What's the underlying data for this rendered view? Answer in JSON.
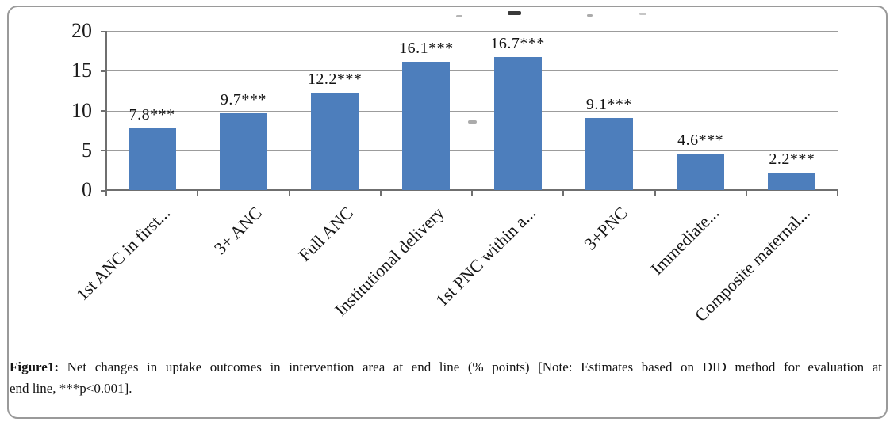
{
  "caption": {
    "label": "Figure1:",
    "line1_rest": " Net changes in uptake outcomes in intervention area at end line (% points) [Note: Estimates based on DID method for evaluation at",
    "line2": "end line, ***p<0.001]."
  },
  "chart_data": {
    "type": "bar",
    "title": "",
    "xlabel": "",
    "ylabel": "",
    "categories": [
      "1st ANC in first...",
      "3+ ANC",
      "Full ANC",
      "Institutional delivery",
      "1st PNC within a...",
      "3+PNC",
      "Immediate...",
      "Composite maternal..."
    ],
    "values": [
      7.8,
      9.7,
      12.2,
      16.1,
      16.7,
      9.1,
      4.6,
      2.2
    ],
    "point_labels": [
      "7.8***",
      "9.7***",
      "12.2***",
      "16.1***",
      "16.7***",
      "9.1***",
      "4.6***",
      "2.2***"
    ],
    "y_ticks": [
      0,
      5,
      10,
      15,
      20
    ],
    "ylim": [
      0,
      20
    ],
    "grid": true,
    "legend_position": "none",
    "bar_color": "#4d7ebc",
    "gridline_color": "#9c9c9c",
    "axis_color": "#6f6f6f",
    "text_color": "#1c1c1c"
  }
}
